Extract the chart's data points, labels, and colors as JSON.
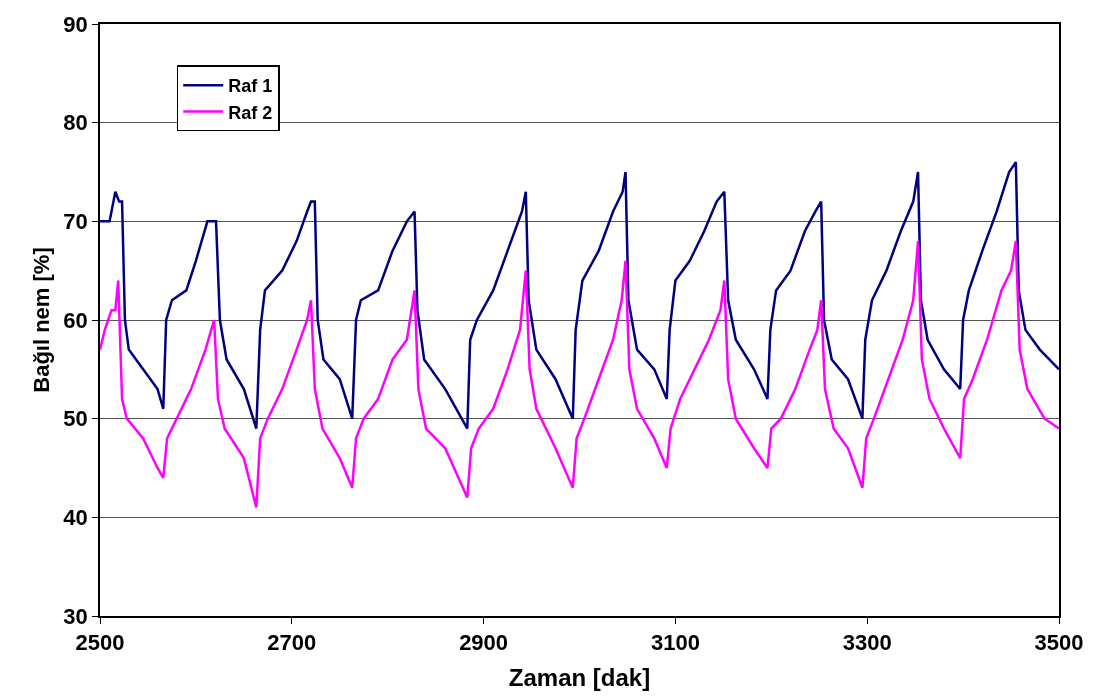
{
  "chart_data": {
    "type": "line",
    "xlabel": "Zaman [dak]",
    "ylabel": "Bağıl nem [%]",
    "xlim": [
      2500,
      3500
    ],
    "xticks": [
      2500,
      2700,
      2900,
      3100,
      3300,
      3500
    ],
    "ylim": [
      30,
      90
    ],
    "yticks": [
      30,
      40,
      50,
      60,
      70,
      80,
      90
    ],
    "grid": "y",
    "legend": "top left",
    "marker": "none",
    "line_style": "solid",
    "series": [
      {
        "name": "Raf 1",
        "color": "#000080",
        "x": [
          2500,
          2510,
          2516,
          2520,
          2523,
          2526,
          2530,
          2545,
          2560,
          2566,
          2569,
          2575,
          2590,
          2600,
          2612,
          2621,
          2625,
          2632,
          2650,
          2663,
          2667,
          2672,
          2690,
          2705,
          2716,
          2720,
          2724,
          2727,
          2733,
          2750,
          2763,
          2767,
          2772,
          2790,
          2805,
          2820,
          2828,
          2831,
          2838,
          2860,
          2883,
          2886,
          2893,
          2910,
          2925,
          2940,
          2944,
          2947,
          2955,
          2975,
          2993,
          2996,
          3003,
          3020,
          3035,
          3045,
          3048,
          3051,
          3060,
          3078,
          3091,
          3094,
          3100,
          3115,
          3130,
          3143,
          3151,
          3155,
          3163,
          3182,
          3196,
          3199,
          3205,
          3220,
          3235,
          3246,
          3252,
          3255,
          3263,
          3280,
          3295,
          3298,
          3305,
          3320,
          3335,
          3348,
          3353,
          3356,
          3363,
          3380,
          3397,
          3400,
          3406,
          3420,
          3435,
          3448,
          3455,
          3458,
          3465,
          3480,
          3500
        ],
        "values": [
          70,
          70,
          73,
          72,
          72,
          60,
          57,
          55,
          53,
          51,
          60,
          62,
          63,
          66,
          70,
          70,
          60,
          56,
          53,
          49,
          59,
          63,
          65,
          68,
          71,
          72,
          72,
          60,
          56,
          54,
          50,
          60,
          62,
          63,
          67,
          70,
          71,
          61,
          56,
          53,
          49,
          58,
          60,
          63,
          67,
          71,
          73,
          62,
          57,
          54,
          50,
          59,
          64,
          67,
          71,
          73,
          75,
          62,
          57,
          55,
          52,
          59,
          64,
          66,
          69,
          72,
          73,
          62,
          58,
          55,
          52,
          59,
          63,
          65,
          69,
          71,
          72,
          60,
          56,
          54,
          50,
          58,
          62,
          65,
          69,
          72,
          75,
          62,
          58,
          55,
          53,
          60,
          63,
          67,
          71,
          75,
          76,
          63,
          59,
          57,
          55
        ]
      },
      {
        "name": "Raf 2",
        "color": "#ff00ff",
        "x": [
          2500,
          2505,
          2512,
          2516,
          2519,
          2523,
          2528,
          2545,
          2560,
          2566,
          2570,
          2580,
          2595,
          2610,
          2619,
          2623,
          2630,
          2650,
          2663,
          2667,
          2675,
          2690,
          2705,
          2716,
          2720,
          2724,
          2732,
          2750,
          2763,
          2767,
          2775,
          2790,
          2805,
          2820,
          2828,
          2832,
          2840,
          2860,
          2883,
          2887,
          2895,
          2910,
          2925,
          2938,
          2944,
          2948,
          2955,
          2975,
          2993,
          2997,
          3005,
          3020,
          3035,
          3044,
          3048,
          3052,
          3060,
          3078,
          3091,
          3095,
          3105,
          3120,
          3135,
          3147,
          3151,
          3155,
          3163,
          3182,
          3196,
          3200,
          3210,
          3225,
          3240,
          3248,
          3252,
          3256,
          3265,
          3280,
          3295,
          3299,
          3307,
          3322,
          3337,
          3348,
          3353,
          3357,
          3365,
          3380,
          3397,
          3401,
          3410,
          3425,
          3440,
          3450,
          3455,
          3459,
          3467,
          3485,
          3500
        ],
        "values": [
          57,
          59,
          61,
          61,
          64,
          52,
          50,
          48,
          45,
          44,
          48,
          50,
          53,
          57,
          60,
          52,
          49,
          46,
          41,
          48,
          50,
          53,
          57,
          60,
          62,
          53,
          49,
          46,
          43,
          48,
          50,
          52,
          56,
          58,
          63,
          53,
          49,
          47,
          42,
          47,
          49,
          51,
          55,
          59,
          65,
          55,
          51,
          47,
          43,
          48,
          50,
          54,
          58,
          62,
          66,
          55,
          51,
          48,
          45,
          49,
          52,
          55,
          58,
          61,
          64,
          54,
          50,
          47,
          45,
          49,
          50,
          53,
          57,
          59,
          62,
          53,
          49,
          47,
          43,
          48,
          50,
          54,
          58,
          62,
          68,
          56,
          52,
          49,
          46,
          52,
          54,
          58,
          63,
          65,
          68,
          57,
          53,
          50,
          49
        ]
      }
    ]
  }
}
